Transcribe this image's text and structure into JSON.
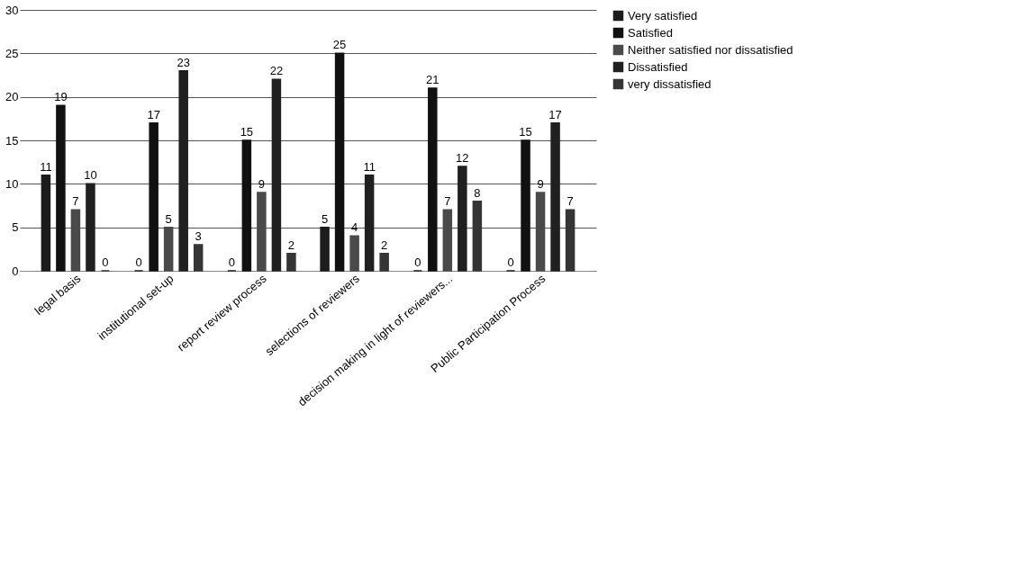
{
  "chart_data": {
    "type": "bar",
    "categories": [
      "legal basis",
      "institutional set-up",
      "report review process",
      "selections of reviewers",
      "decision making in light of reviewers...",
      "Public Participation Process"
    ],
    "series": [
      {
        "name": "Very satisfied",
        "color": "#1c1c1c",
        "values": [
          11,
          0,
          0,
          5,
          0,
          0
        ]
      },
      {
        "name": "Satisfied",
        "color": "#111111",
        "values": [
          19,
          17,
          15,
          25,
          21,
          15
        ]
      },
      {
        "name": "Neither satisfied nor dissatisfied",
        "color": "#4a4a4a",
        "values": [
          7,
          5,
          9,
          4,
          7,
          9
        ]
      },
      {
        "name": "Dissatisfied",
        "color": "#202020",
        "values": [
          10,
          23,
          22,
          11,
          12,
          17
        ]
      },
      {
        "name": "very dissatisfied",
        "color": "#353535",
        "values": [
          0,
          3,
          2,
          2,
          8,
          7
        ]
      }
    ],
    "ylim": [
      0,
      30
    ],
    "yticks": [
      0,
      5,
      10,
      15,
      20,
      25,
      30
    ],
    "grid": "y",
    "legend": "right",
    "data_labels": true
  }
}
